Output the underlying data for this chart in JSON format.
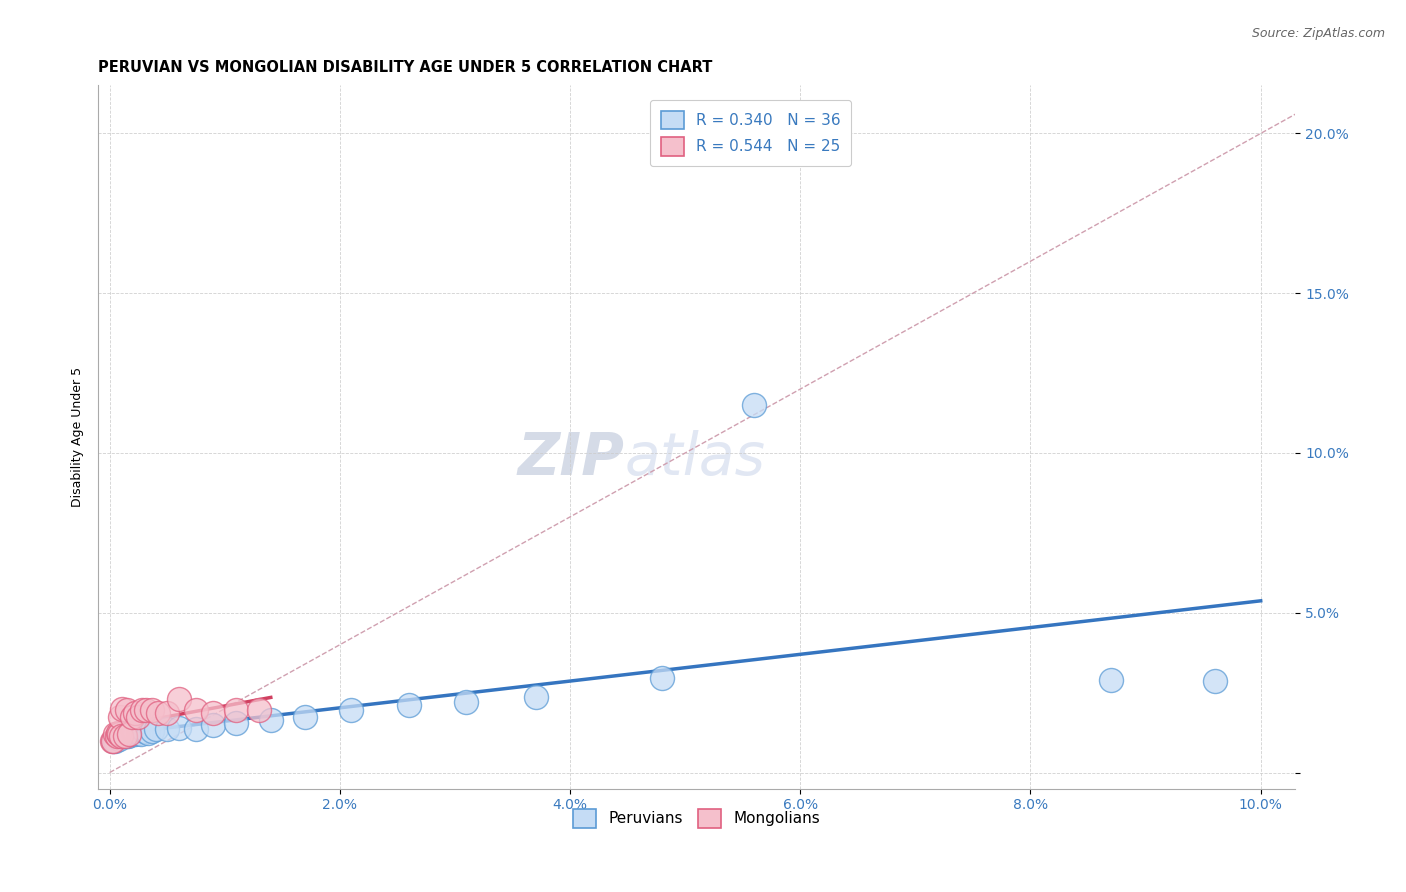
{
  "title": "PERUVIAN VS MONGOLIAN DISABILITY AGE UNDER 5 CORRELATION CHART",
  "source": "Source: ZipAtlas.com",
  "ylabel": "Disability Age Under 5",
  "xlim": [
    -0.001,
    0.103
  ],
  "ylim": [
    -0.005,
    0.215
  ],
  "xticks": [
    0.0,
    0.02,
    0.04,
    0.06,
    0.08,
    0.1
  ],
  "xtick_labels": [
    "0.0%",
    "2.0%",
    "4.0%",
    "6.0%",
    "8.0%",
    "10.0%"
  ],
  "yticks": [
    0.0,
    0.05,
    0.1,
    0.15,
    0.2
  ],
  "ytick_labels": [
    "",
    "5.0%",
    "10.0%",
    "15.0%",
    "20.0%"
  ],
  "peruvian_fill": "#c5dcf5",
  "mongolian_fill": "#f5c0cc",
  "peruvian_edge": "#5b9bd5",
  "mongolian_edge": "#e06080",
  "peruvian_line_color": "#3575c0",
  "mongolian_line_color": "#d04060",
  "diagonal_color": "#d0a0b0",
  "watermark_zip": "ZIP",
  "watermark_atlas": "atlas",
  "title_fontsize": 10.5,
  "axis_label_fontsize": 9,
  "tick_fontsize": 10,
  "legend_fontsize": 11,
  "watermark_fontsize_zip": 42,
  "watermark_fontsize_atlas": 42,
  "background_color": "#ffffff",
  "peruvians_x": [
    0.0003,
    0.0005,
    0.0006,
    0.0007,
    0.0008,
    0.0009,
    0.001,
    0.0011,
    0.0012,
    0.0013,
    0.0015,
    0.0016,
    0.0018,
    0.002,
    0.0022,
    0.0025,
    0.0027,
    0.003,
    0.0033,
    0.0037,
    0.004,
    0.005,
    0.006,
    0.0075,
    0.009,
    0.011,
    0.014,
    0.017,
    0.021,
    0.026,
    0.031,
    0.037,
    0.048,
    0.056,
    0.087,
    0.096
  ],
  "peruvians_y": [
    0.01,
    0.01,
    0.0115,
    0.011,
    0.0105,
    0.012,
    0.0115,
    0.0115,
    0.0115,
    0.012,
    0.0115,
    0.0115,
    0.012,
    0.012,
    0.012,
    0.0125,
    0.012,
    0.013,
    0.0125,
    0.013,
    0.0135,
    0.0135,
    0.014,
    0.0135,
    0.015,
    0.0155,
    0.0165,
    0.0175,
    0.0195,
    0.021,
    0.022,
    0.0235,
    0.0295,
    0.115,
    0.029,
    0.0285
  ],
  "mongolians_x": [
    0.0002,
    0.0003,
    0.0005,
    0.0006,
    0.0007,
    0.0008,
    0.0009,
    0.001,
    0.0011,
    0.0013,
    0.0015,
    0.0017,
    0.0019,
    0.0022,
    0.0025,
    0.0028,
    0.0032,
    0.0037,
    0.0042,
    0.005,
    0.006,
    0.0075,
    0.009,
    0.011,
    0.013
  ],
  "mongolians_y": [
    0.01,
    0.01,
    0.012,
    0.0115,
    0.0125,
    0.012,
    0.0175,
    0.0115,
    0.02,
    0.0115,
    0.0195,
    0.012,
    0.0175,
    0.0185,
    0.0175,
    0.0195,
    0.0195,
    0.0195,
    0.0185,
    0.0185,
    0.023,
    0.0195,
    0.0185,
    0.0195,
    0.0195
  ]
}
